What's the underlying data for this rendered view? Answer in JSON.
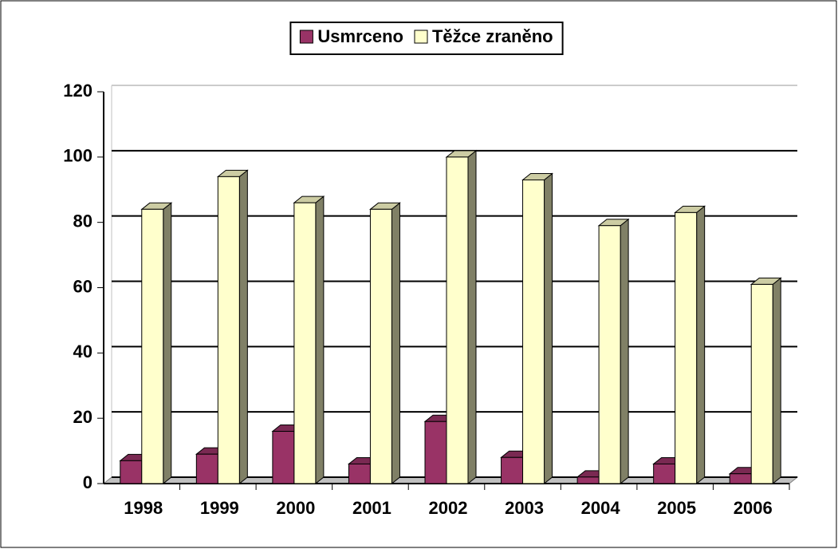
{
  "chart_data": {
    "type": "bar3d",
    "categories": [
      "1998",
      "1999",
      "2000",
      "2001",
      "2002",
      "2003",
      "2004",
      "2005",
      "2006"
    ],
    "series": [
      {
        "name": "Usmrceno",
        "color": "#993366",
        "values": [
          7,
          9,
          16,
          6,
          19,
          8,
          2,
          6,
          3
        ]
      },
      {
        "name": "Těžce zraněno",
        "color": "#ffffcc",
        "values": [
          84,
          94,
          86,
          84,
          100,
          93,
          79,
          83,
          61
        ]
      }
    ],
    "ylim": [
      0,
      120
    ],
    "yticks": [
      0,
      20,
      40,
      60,
      80,
      100,
      120
    ],
    "grid": true,
    "legend": "top"
  }
}
